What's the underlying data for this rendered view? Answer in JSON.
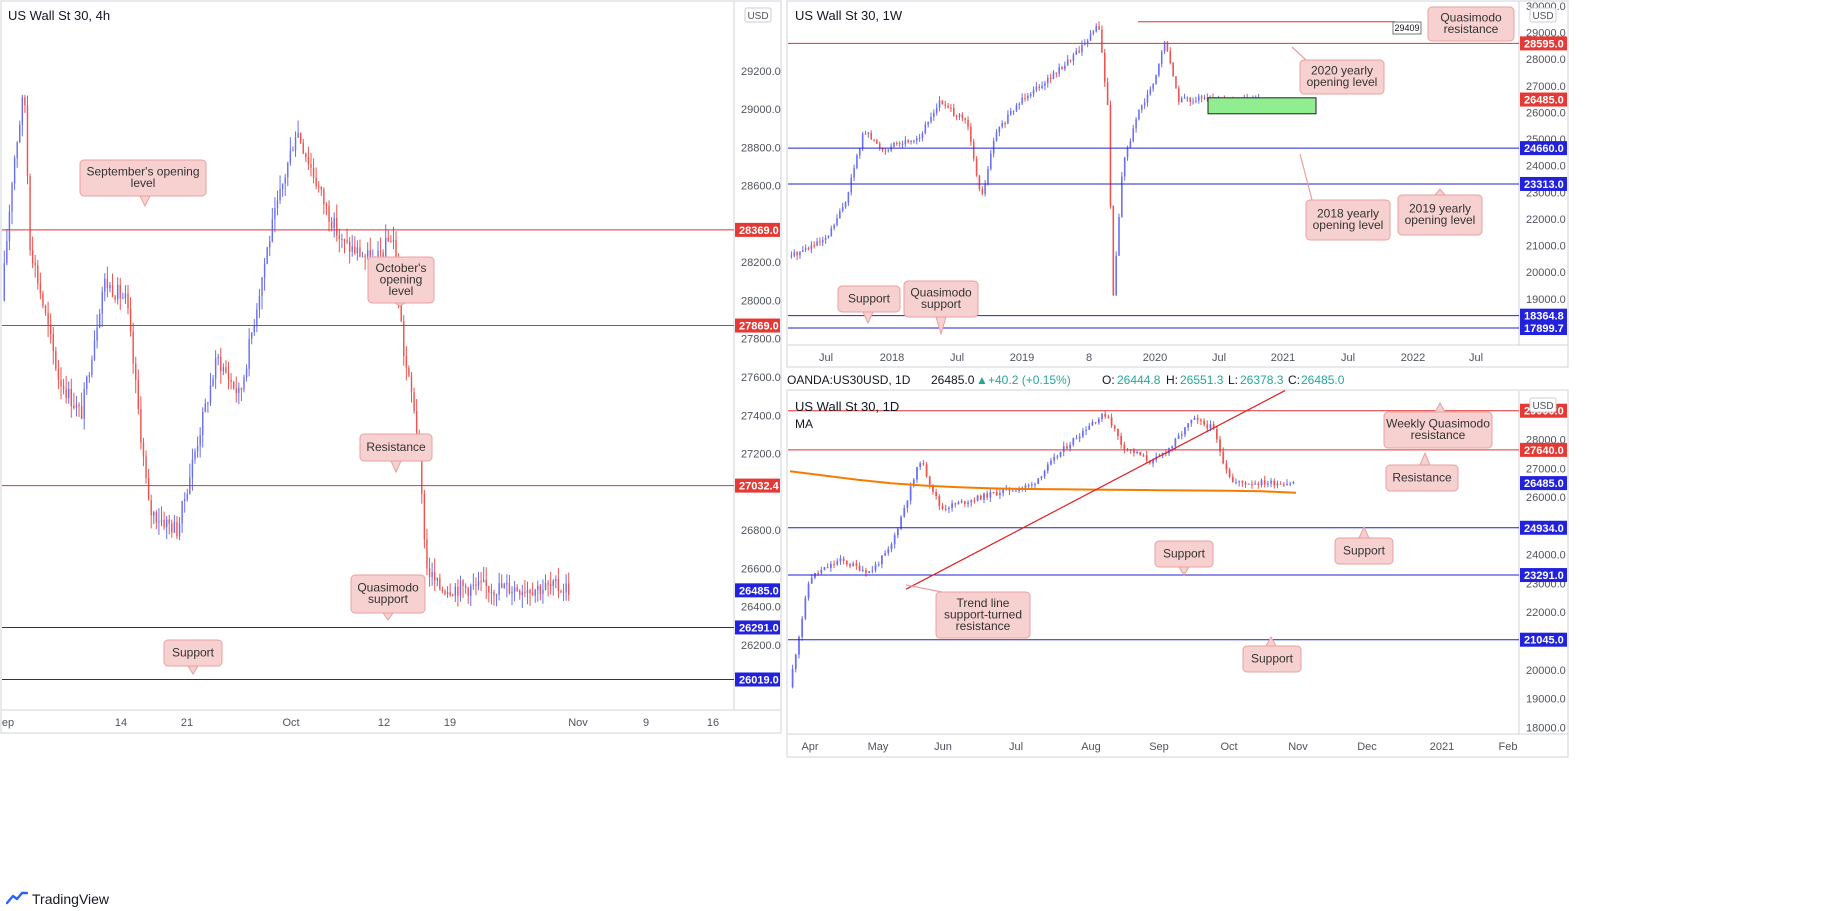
{
  "footer": {
    "brand": "TradingView",
    "logo_icon": "tradingview-logo-icon"
  },
  "colors": {
    "up": "#6a6ff0",
    "down": "#ef5350",
    "resistance_line": "#e03030",
    "support_line": "#2020d0",
    "callout_fill": "#f7d0d0",
    "callout_stroke": "#e8a0a0",
    "ma_line": "#f57c00",
    "trendline": "#e02020",
    "zone_fill": "#90ee90"
  },
  "panels": {
    "h4": {
      "title": "US Wall St 30, 4h",
      "currency": "USD",
      "y_ticks": [
        "29200.0",
        "29000.0",
        "28800.0",
        "28600.0",
        "28200.0",
        "28000.0",
        "27800.0",
        "27600.0",
        "27400.0",
        "27200.0",
        "26800.0",
        "26600.0",
        "26400.0",
        "26200.0"
      ],
      "x_ticks": [
        "ep",
        "14",
        "21",
        "Oct",
        "12",
        "19",
        "Nov",
        "9",
        "16"
      ],
      "badges": [
        {
          "label": "28369.0",
          "kind": "res"
        },
        {
          "label": "27869.0",
          "kind": "res"
        },
        {
          "label": "27032.4",
          "kind": "res"
        },
        {
          "label": "26485.0",
          "kind": "price"
        },
        {
          "label": "26291.0",
          "kind": "sup"
        },
        {
          "label": "26019.0",
          "kind": "sup"
        }
      ],
      "callouts": [
        {
          "lines": [
            "September's opening",
            "level"
          ]
        },
        {
          "lines": [
            "October's",
            "opening",
            "level"
          ]
        },
        {
          "lines": [
            "Resistance"
          ]
        },
        {
          "lines": [
            "Quasimodo",
            "support"
          ]
        },
        {
          "lines": [
            "Support"
          ]
        }
      ]
    },
    "w1": {
      "title": "US Wall St 30, 1W",
      "currency": "USD",
      "y_ticks": [
        "30000.0",
        "29000.0",
        "28000.0",
        "27000.0",
        "26000.0",
        "25000.0",
        "24000.0",
        "23000.0",
        "22000.0",
        "21000.0",
        "20000.0",
        "19000.0"
      ],
      "x_ticks": [
        "Jul",
        "2018",
        "Jul",
        "2019",
        "8",
        "2020",
        "Jul",
        "2021",
        "Jul",
        "2022",
        "Jul"
      ],
      "badges": [
        {
          "label": "28595.0",
          "kind": "res"
        },
        {
          "label": "26485.0",
          "kind": "res"
        },
        {
          "label": "24660.0",
          "kind": "sup"
        },
        {
          "label": "23313.0",
          "kind": "sup"
        },
        {
          "label": "18364.8",
          "kind": "sup"
        },
        {
          "label": "17899.7",
          "kind": "sup"
        }
      ],
      "small_label": "29409",
      "callouts": [
        {
          "lines": [
            "Quasimodo",
            "resistance"
          ]
        },
        {
          "lines": [
            "2020 yearly",
            "opening level"
          ]
        },
        {
          "lines": [
            "2018 yearly",
            "opening level"
          ]
        },
        {
          "lines": [
            "2019 yearly",
            "opening level"
          ]
        },
        {
          "lines": [
            "Support"
          ]
        },
        {
          "lines": [
            "Quasimodo",
            "support"
          ]
        }
      ]
    },
    "d1": {
      "ohlc_bar": {
        "symbol": "OANDA:US30USD, 1D",
        "close": "26485.0",
        "change": "+40.2 (+0.15%)",
        "o_label": "O:",
        "o": "26444.8",
        "h_label": "H:",
        "h": "26551.3",
        "l_label": "L:",
        "l": "26378.3",
        "c_label": "C:",
        "c": "26485.0"
      },
      "title": "US Wall St 30, 1D",
      "ma_label": "MA",
      "currency": "USD",
      "y_ticks": [
        "29000.0",
        "28000.0",
        "27000.0",
        "26000.0",
        "25000.0",
        "24000.0",
        "23000.0",
        "22000.0",
        "21000.0",
        "20000.0",
        "19000.0",
        "18000.0"
      ],
      "x_ticks": [
        "Apr",
        "May",
        "Jun",
        "Jul",
        "Aug",
        "Sep",
        "Oct",
        "Nov",
        "Dec",
        "2021",
        "Feb"
      ],
      "badges": [
        {
          "label": "29000.0",
          "kind": "res"
        },
        {
          "label": "27640.0",
          "kind": "res"
        },
        {
          "label": "26485.0",
          "kind": "sup"
        },
        {
          "label": "24934.0",
          "kind": "sup"
        },
        {
          "label": "23291.0",
          "kind": "sup"
        },
        {
          "label": "21045.0",
          "kind": "sup"
        }
      ],
      "callouts": [
        {
          "lines": [
            "Weekly Quasimodo",
            "resistance"
          ]
        },
        {
          "lines": [
            "Resistance"
          ]
        },
        {
          "lines": [
            "Support"
          ]
        },
        {
          "lines": [
            "Support"
          ]
        },
        {
          "lines": [
            "Trend line",
            "support-turned",
            "resistance"
          ]
        },
        {
          "lines": [
            "Support"
          ]
        }
      ]
    }
  },
  "chart_data": [
    {
      "type": "candlestick",
      "title": "US Wall St 30, 4h",
      "ylim": [
        25870,
        29560
      ],
      "x_range": [
        "2020-09-08",
        "2020-11-17"
      ],
      "levels": [
        {
          "name": "September's opening level",
          "value": 28369.0
        },
        {
          "name": "October's opening level",
          "value": 27869.0
        },
        {
          "name": "Resistance",
          "value": 27032.4
        },
        {
          "name": "Quasimodo support",
          "value": 26291.0
        },
        {
          "name": "Support",
          "value": 26019.0
        }
      ],
      "last_price": 26485.0
    },
    {
      "type": "candlestick",
      "title": "US Wall St 30, 1W",
      "ylim": [
        17300,
        30150
      ],
      "x_range": [
        "2017-04-01",
        "2022-10-01"
      ],
      "levels": [
        {
          "name": "Quasimodo resistance",
          "value": 29409
        },
        {
          "name": "2020 yearly opening level",
          "value": 28595.0
        },
        {
          "name": "2018 yearly opening level",
          "value": 24660.0
        },
        {
          "name": "2019 yearly opening level",
          "value": 23313.0
        },
        {
          "name": "Support",
          "value": 18364.8
        },
        {
          "name": "Quasimodo support",
          "value": 17899.7
        }
      ],
      "demand_zone": [
        25950,
        26550
      ],
      "last_price": 26485.0
    },
    {
      "type": "candlestick",
      "title": "US Wall St 30, 1D",
      "ylim": [
        17700,
        29650
      ],
      "x_range": [
        "2020-03-20",
        "2021-02-10"
      ],
      "levels": [
        {
          "name": "Weekly Quasimodo resistance",
          "value": 29000.0
        },
        {
          "name": "Resistance",
          "value": 27640.0
        },
        {
          "name": "Support",
          "value": 24934.0
        },
        {
          "name": "Support",
          "value": 23291.0
        },
        {
          "name": "Support",
          "value": 21045.0
        }
      ],
      "ma": "200-day moving average",
      "trendline": {
        "name": "Trend line support-turned-resistance"
      },
      "last_price": 26485.0
    }
  ]
}
